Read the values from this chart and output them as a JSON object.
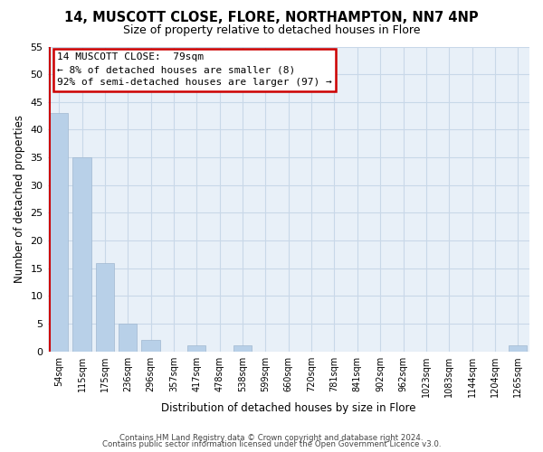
{
  "title": "14, MUSCOTT CLOSE, FLORE, NORTHAMPTON, NN7 4NP",
  "subtitle": "Size of property relative to detached houses in Flore",
  "xlabel": "Distribution of detached houses by size in Flore",
  "ylabel": "Number of detached properties",
  "bar_labels": [
    "54sqm",
    "115sqm",
    "175sqm",
    "236sqm",
    "296sqm",
    "357sqm",
    "417sqm",
    "478sqm",
    "538sqm",
    "599sqm",
    "660sqm",
    "720sqm",
    "781sqm",
    "841sqm",
    "902sqm",
    "962sqm",
    "1023sqm",
    "1083sqm",
    "1144sqm",
    "1204sqm",
    "1265sqm"
  ],
  "bar_values": [
    43,
    35,
    16,
    5,
    2,
    0,
    1,
    0,
    1,
    0,
    0,
    0,
    0,
    0,
    0,
    0,
    0,
    0,
    0,
    0,
    1
  ],
  "bar_color_normal": "#b8d0e8",
  "highlight_line_color": "#cc0000",
  "highlight_bar_index": 0,
  "ylim": [
    0,
    55
  ],
  "yticks": [
    0,
    5,
    10,
    15,
    20,
    25,
    30,
    35,
    40,
    45,
    50,
    55
  ],
  "annotation_title": "14 MUSCOTT CLOSE:  79sqm",
  "annotation_line1": "← 8% of detached houses are smaller (8)",
  "annotation_line2": "92% of semi-detached houses are larger (97) →",
  "annotation_box_color": "#ffffff",
  "annotation_box_edge": "#cc0000",
  "grid_color": "#c8d8e8",
  "bg_color": "#e8f0f8",
  "footer_line1": "Contains HM Land Registry data © Crown copyright and database right 2024.",
  "footer_line2": "Contains public sector information licensed under the Open Government Licence v3.0."
}
